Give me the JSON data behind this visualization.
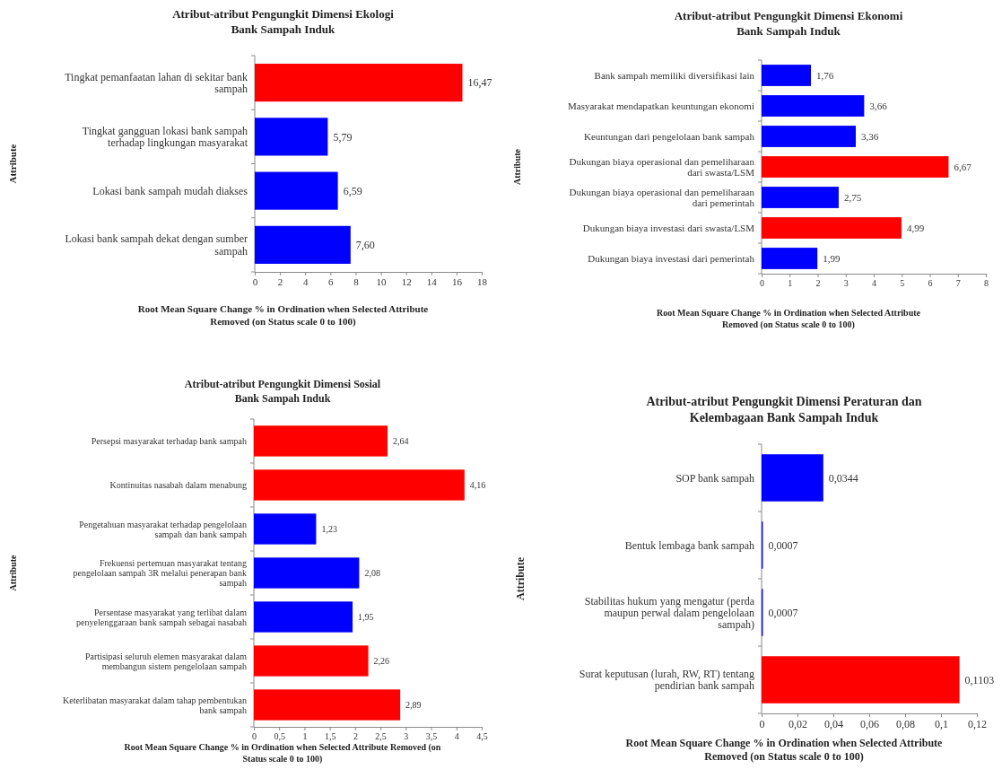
{
  "chart_data": [
    {
      "type": "bar",
      "orientation": "horizontal",
      "title": "Atribut-atribut Pengungkit Dimensi Ekologi\nBank Sampah Induk",
      "xlabel": "Root Mean Square Change % in Ordination when Selected Attribute\nRemoved (on Status scale 0 to 100)",
      "ylabel": "Attribute",
      "categories": [
        "Tingkat pemanfaatan lahan di sekitar bank\nsampah",
        "Tingkat gangguan lokasi bank sampah\nterhadap lingkungan masyarakat",
        "Lokasi bank sampah mudah diakses",
        "Lokasi bank sampah dekat dengan sumber\nsampah"
      ],
      "values": [
        16.47,
        5.79,
        6.59,
        7.6
      ],
      "colors": [
        "#ff0000",
        "#0000ff",
        "#0000ff",
        "#0000ff"
      ],
      "value_labels": [
        "16,47",
        "5,79",
        "6,59",
        "7,60"
      ],
      "xlim": [
        0,
        18
      ],
      "xticks": [
        0,
        2,
        4,
        6,
        8,
        10,
        12,
        14,
        16,
        18
      ]
    },
    {
      "type": "bar",
      "orientation": "horizontal",
      "title": "Atribut-atribut Pengungkit Dimensi Ekonomi\nBank Sampah Induk",
      "xlabel": "Root Mean Square Change % in Ordination when Selected Attribute\nRemoved (on Status scale 0 to 100)",
      "ylabel": "Attribute",
      "categories": [
        "Bank sampah memiliki diversifikasi lain",
        "Masyarakat mendapatkan keuntungan ekonomi",
        "Keuntungan dari pengelolaan bank sampah",
        "Dukungan biaya operasional dan pemeliharaan\ndari swasta/LSM",
        "Dukungan biaya operasional dan pemeliharaan\ndari pemerintah",
        "Dukungan biaya investasi dari swasta/LSM",
        "Dukungan biaya investasi dari pemerintah"
      ],
      "values": [
        1.76,
        3.66,
        3.36,
        6.67,
        2.75,
        4.99,
        1.99
      ],
      "colors": [
        "#0000ff",
        "#0000ff",
        "#0000ff",
        "#ff0000",
        "#0000ff",
        "#ff0000",
        "#0000ff"
      ],
      "value_labels": [
        "1,76",
        "3,66",
        "3,36",
        "6,67",
        "2,75",
        "4,99",
        "1,99"
      ],
      "xlim": [
        0,
        8
      ],
      "xticks": [
        0,
        1,
        2,
        3,
        4,
        5,
        6,
        7,
        8
      ]
    },
    {
      "type": "bar",
      "orientation": "horizontal",
      "title": "Atribut-atribut Pengungkit Dimensi Sosial\nBank Sampah Induk",
      "xlabel": "Root Mean Square Change % in Ordination when Selected Attribute Removed (on\nStatus scale 0 to 100)",
      "ylabel": "Attribute",
      "categories": [
        "Persepsi masyarakat terhadap bank sampah",
        "Kontinuitas nasabah dalam menabung",
        "Pengetahuan masyarakat terhadap pengelolaan\nsampah dan bank sampah",
        "Frekuensi pertemuan masyarakat tentang\npengelolaan sampah 3R melalui penerapan bank\nsampah",
        "Persentase masyarakat yang terlibat dalam\npenyelenggaraan bank sampah sebagai nasabah",
        "Partisipasi seluruh elemen masyarakat dalam\nmembangun sistem pengelolaan sampah",
        "Keterlibatan masyarakat dalam tahap pembentukan\nbank sampah"
      ],
      "values": [
        2.64,
        4.16,
        1.23,
        2.08,
        1.95,
        2.26,
        2.89
      ],
      "colors": [
        "#ff0000",
        "#ff0000",
        "#0000ff",
        "#0000ff",
        "#0000ff",
        "#ff0000",
        "#ff0000"
      ],
      "value_labels": [
        "2,64",
        "4,16",
        "1,23",
        "2,08",
        "1,95",
        "2,26",
        "2,89"
      ],
      "xlim": [
        0,
        4.5
      ],
      "xticks": [
        0,
        {
          "value": 0.5,
          "label": "0,5"
        },
        1,
        {
          "value": 1.5,
          "label": "1,5"
        },
        2,
        {
          "value": 2.5,
          "label": "2,5"
        },
        3,
        {
          "value": 3.5,
          "label": "3,5"
        },
        4,
        {
          "value": 4.5,
          "label": "4,5"
        }
      ]
    },
    {
      "type": "bar",
      "orientation": "horizontal",
      "title": "Atribut-atribut Pengungkit Dimensi Peraturan dan\nKelembagaan Bank Sampah Induk",
      "xlabel": "Root Mean Square Change % in Ordination when Selected Attribute\nRemoved (on Status scale 0 to 100)",
      "ylabel": "Attribute",
      "categories": [
        "SOP bank sampah",
        "Bentuk lembaga bank sampah",
        "Stabilitas hukum yang mengatur (perda\nmaupun perwal dalam pengelolaan\nsampah)",
        "Surat keputusan (lurah, RW, RT) tentang\npendirian bank sampah"
      ],
      "values": [
        0.0344,
        0.0007,
        0.0007,
        0.1103
      ],
      "colors": [
        "#0000ff",
        "#0000ff",
        "#0000ff",
        "#ff0000"
      ],
      "value_labels": [
        "0,0344",
        "0,0007",
        "0,0007",
        "0,1103"
      ],
      "xlim": [
        0,
        0.12
      ],
      "xticks": [
        0,
        {
          "value": 0.02,
          "label": "0,02"
        },
        {
          "value": 0.04,
          "label": "0,04"
        },
        {
          "value": 0.06,
          "label": "0,06"
        },
        {
          "value": 0.08,
          "label": "0,08"
        },
        {
          "value": 0.1,
          "label": "0,1"
        },
        {
          "value": 0.12,
          "label": "0,12"
        }
      ]
    }
  ]
}
